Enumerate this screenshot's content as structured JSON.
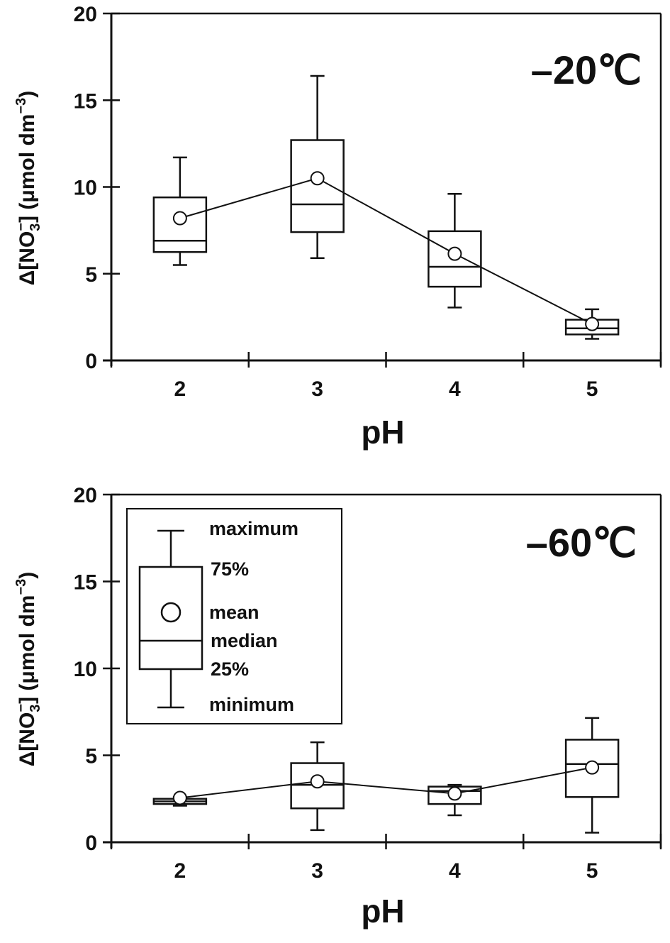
{
  "chart_data": [
    {
      "type": "box",
      "title": "–20℃",
      "xlabel": "pH",
      "ylabel": "Δ[NO3−] (μmol dm−3)",
      "ylabel_parts": {
        "prefix": "Δ[NO",
        "sub": "3",
        "sup1": "−",
        "mid": "] (μmol dm",
        "sup2": "−3",
        "suffix": ")"
      },
      "categories": [
        "2",
        "3",
        "4",
        "5"
      ],
      "ylim": [
        0,
        20
      ],
      "yticks": [
        "0",
        "5",
        "10",
        "15",
        "20"
      ],
      "ytick_values": [
        0,
        5,
        10,
        15,
        20
      ],
      "grid": false,
      "legend": null,
      "series": [
        {
          "name": "pH 2",
          "min": 5.5,
          "q1": 6.25,
          "median": 6.9,
          "mean": 8.2,
          "q3": 9.4,
          "max": 11.7
        },
        {
          "name": "pH 3",
          "min": 5.9,
          "q1": 7.4,
          "median": 9.0,
          "mean": 10.5,
          "q3": 12.7,
          "max": 16.4
        },
        {
          "name": "pH 4",
          "min": 3.05,
          "q1": 4.25,
          "median": 5.4,
          "mean": 6.15,
          "q3": 7.45,
          "max": 9.6
        },
        {
          "name": "pH 5",
          "min": 1.25,
          "q1": 1.5,
          "median": 1.85,
          "mean": 2.1,
          "q3": 2.35,
          "max": 2.95
        }
      ]
    },
    {
      "type": "box",
      "title": "–60℃",
      "xlabel": "pH",
      "ylabel": "Δ[NO3−] (μmol dm−3)",
      "ylabel_parts": {
        "prefix": "Δ[NO",
        "sub": "3",
        "sup1": "−",
        "mid": "] (μmol dm",
        "sup2": "−3",
        "suffix": ")"
      },
      "categories": [
        "2",
        "3",
        "4",
        "5"
      ],
      "ylim": [
        0,
        20
      ],
      "yticks": [
        "0",
        "5",
        "10",
        "15",
        "20"
      ],
      "ytick_values": [
        0,
        5,
        10,
        15,
        20
      ],
      "grid": false,
      "legend": {
        "placement": "top-left",
        "entries": [
          "maximum",
          "75%",
          "mean",
          "median",
          "25%",
          "minimum"
        ]
      },
      "series": [
        {
          "name": "pH 2",
          "min": 2.1,
          "q1": 2.2,
          "median": 2.35,
          "mean": 2.55,
          "q3": 2.5,
          "max": 2.6
        },
        {
          "name": "pH 3",
          "min": 0.7,
          "q1": 1.95,
          "median": 3.3,
          "mean": 3.5,
          "q3": 4.55,
          "max": 5.75
        },
        {
          "name": "pH 4",
          "min": 1.55,
          "q1": 2.2,
          "median": 2.95,
          "mean": 2.8,
          "q3": 3.2,
          "max": 3.3
        },
        {
          "name": "pH 5",
          "min": 0.55,
          "q1": 2.6,
          "median": 4.5,
          "mean": 4.3,
          "q3": 5.9,
          "max": 7.15
        }
      ]
    }
  ]
}
